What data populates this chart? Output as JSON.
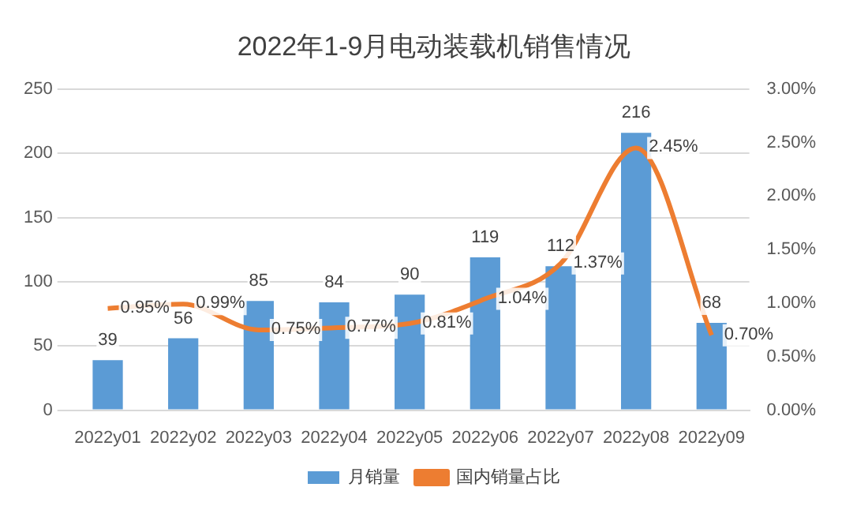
{
  "chart_data": {
    "type": "bar",
    "title": "2022年1-9月电动装载机销售情况",
    "categories": [
      "2022y01",
      "2022y02",
      "2022y03",
      "2022y04",
      "2022y05",
      "2022y06",
      "2022y07",
      "2022y08",
      "2022y09"
    ],
    "series": [
      {
        "name": "月销量",
        "color": "#5b9bd5",
        "values": [
          39,
          56,
          85,
          84,
          90,
          119,
          112,
          216,
          68
        ],
        "value_labels": [
          "39",
          "56",
          "85",
          "84",
          "90",
          "119",
          "112",
          "216",
          "68"
        ]
      },
      {
        "name": "国内销量占比",
        "type": "line",
        "axis": "y2",
        "color": "#ed7d31",
        "values": [
          0.95,
          0.99,
          0.75,
          0.77,
          0.81,
          1.04,
          1.37,
          2.45,
          0.7
        ],
        "value_labels": [
          "0.95%",
          "0.99%",
          "0.75%",
          "0.77%",
          "0.81%",
          "1.04%",
          "1.37%",
          "2.45%",
          "0.70%"
        ]
      }
    ],
    "ylim": [
      0,
      250
    ],
    "yticks": [
      0,
      50,
      100,
      150,
      200,
      250
    ],
    "y2lim": [
      0,
      3
    ],
    "y2ticks": [
      {
        "value": 0,
        "label": "0.00%"
      },
      {
        "value": 0.5,
        "label": "0.50%"
      },
      {
        "value": 1,
        "label": "1.00%"
      },
      {
        "value": 1.5,
        "label": "1.50%"
      },
      {
        "value": 2,
        "label": "2.00%"
      },
      {
        "value": 2.5,
        "label": "2.50%"
      },
      {
        "value": 3,
        "label": "3.00%"
      }
    ],
    "grid": "y",
    "legend": "bottom",
    "marker": "none"
  }
}
